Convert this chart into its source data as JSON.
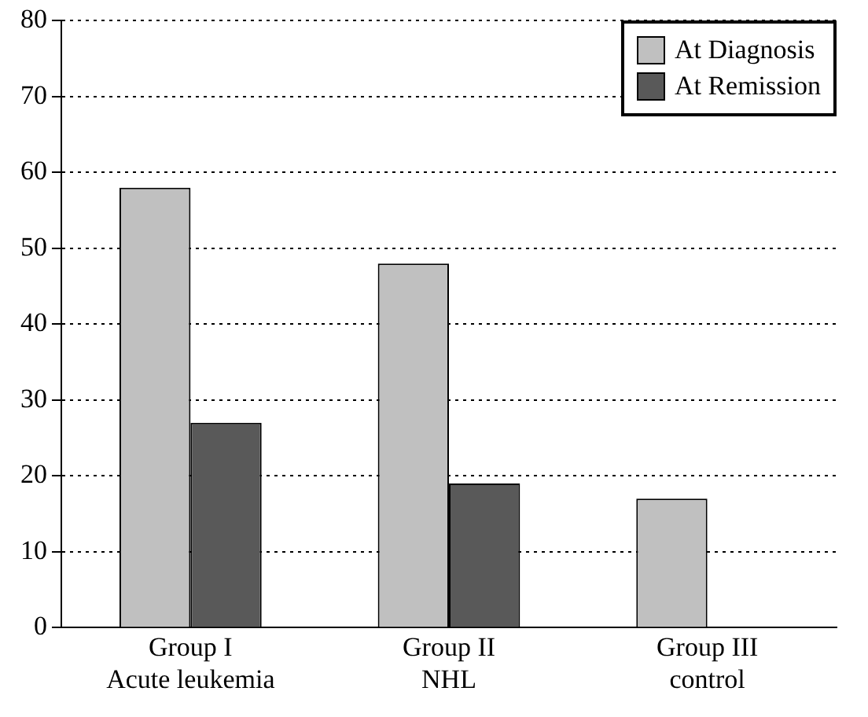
{
  "chart_data": {
    "type": "bar",
    "categories": [
      "Group I\nAcute leukemia",
      "Group II\nNHL",
      "Group III\ncontrol"
    ],
    "series": [
      {
        "name": "At Diagnosis",
        "color": "#c0c0c0",
        "values": [
          58,
          48,
          17
        ]
      },
      {
        "name": "At Remission",
        "color": "#595959",
        "values": [
          27,
          19,
          null
        ]
      }
    ],
    "ylim": [
      0,
      80
    ],
    "yticks": [
      0,
      10,
      20,
      30,
      40,
      50,
      60,
      70,
      80
    ],
    "grid": "y",
    "legend": "top right"
  }
}
